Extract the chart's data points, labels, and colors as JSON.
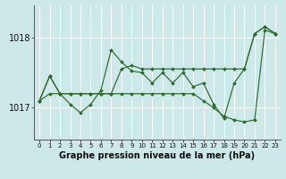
{
  "xlabel": "Graphe pression niveau de la mer (hPa)",
  "background_color": "#cde8e8",
  "grid_color": "#ffffff",
  "line_color": "#2d6a2d",
  "marker_color": "#2d6a2d",
  "hours": [
    0,
    1,
    2,
    3,
    4,
    5,
    6,
    7,
    8,
    9,
    10,
    11,
    12,
    13,
    14,
    15,
    16,
    17,
    18,
    19,
    20,
    21,
    22,
    23
  ],
  "s1": [
    1017.1,
    1017.45,
    1017.2,
    1017.2,
    1017.2,
    1017.2,
    1017.2,
    1017.2,
    1017.55,
    1017.6,
    1017.55,
    1017.55,
    1017.55,
    1017.55,
    1017.55,
    1017.55,
    1017.55,
    1017.55,
    1017.55,
    1017.55,
    1017.55,
    1018.05,
    1018.15,
    1018.05
  ],
  "s2": [
    1017.1,
    1017.45,
    1017.2,
    1017.05,
    1016.93,
    1017.05,
    1017.25,
    1017.82,
    1017.65,
    1017.52,
    1017.5,
    1017.35,
    1017.5,
    1017.35,
    1017.5,
    1017.3,
    1017.35,
    1017.05,
    1016.85,
    1017.35,
    1017.55,
    1018.05,
    1018.15,
    1018.05
  ],
  "s3": [
    1017.1,
    1017.2,
    1017.2,
    1017.2,
    1017.2,
    1017.2,
    1017.2,
    1017.2,
    1017.2,
    1017.2,
    1017.2,
    1017.2,
    1017.2,
    1017.2,
    1017.2,
    1017.2,
    1017.1,
    1017.0,
    1016.88,
    1016.83,
    1016.8,
    1016.83,
    1018.1,
    1018.05
  ],
  "ylim_min": 1016.55,
  "ylim_max": 1018.45,
  "yticks": [
    1017,
    1018
  ],
  "fontsize_xlabel": 7,
  "fontsize_ytick": 7,
  "fontsize_xtick": 5
}
